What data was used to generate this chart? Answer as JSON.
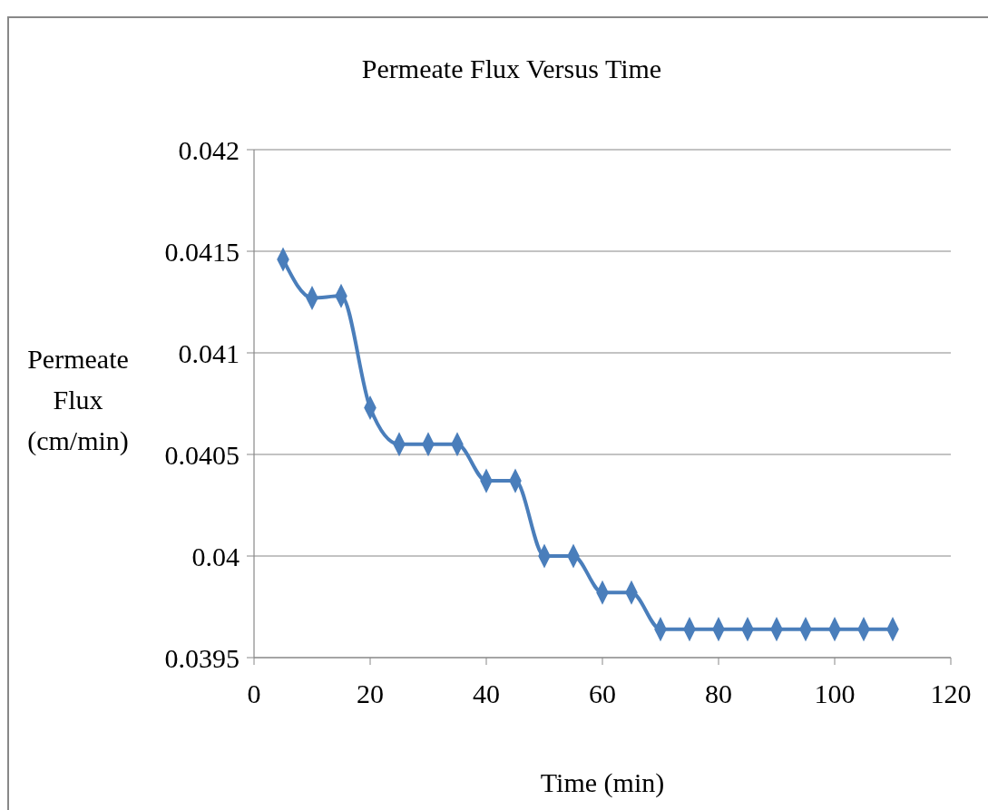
{
  "chart_data": {
    "type": "line",
    "title": "Permeate Flux Versus Time",
    "xlabel": "Time (min)",
    "ylabel": "Permeate Flux (cm/min)",
    "x": [
      5,
      10,
      15,
      20,
      25,
      30,
      35,
      40,
      45,
      50,
      55,
      60,
      65,
      70,
      75,
      80,
      85,
      90,
      95,
      100,
      105,
      110
    ],
    "series": [
      {
        "color": "#4a7ebb",
        "values": [
          0.04146,
          0.04127,
          0.04128,
          0.04073,
          0.04055,
          0.04055,
          0.04055,
          0.04037,
          0.04037,
          0.04,
          0.04,
          0.03982,
          0.03982,
          0.03964,
          0.03964,
          0.03964,
          0.03964,
          0.03964,
          0.03964,
          0.03964,
          0.03964,
          0.03964
        ]
      }
    ],
    "xlim": [
      0,
      120
    ],
    "xticks": [
      0,
      20,
      40,
      60,
      80,
      100,
      120
    ],
    "ylim": [
      0.0395,
      0.042
    ],
    "yticks": [
      0.0395,
      0.04,
      0.0405,
      0.041,
      0.0415,
      0.042
    ],
    "grid": "y",
    "marker": "diamond"
  }
}
